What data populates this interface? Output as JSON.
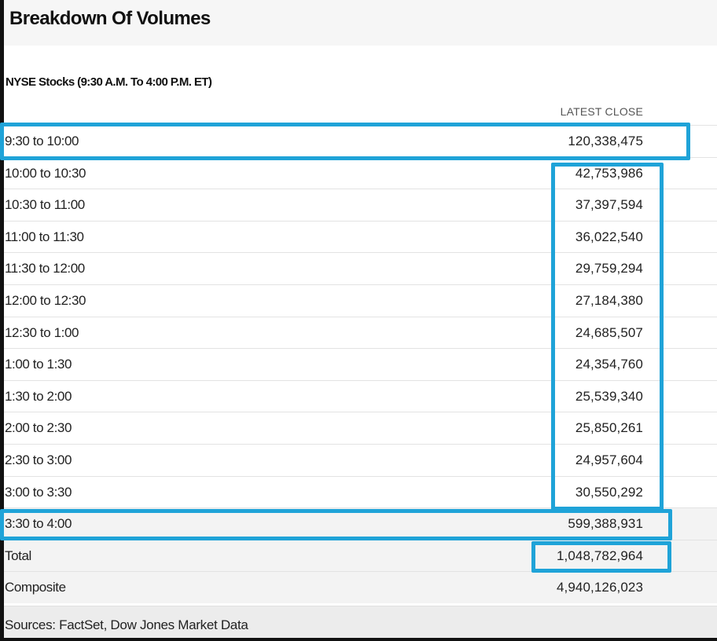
{
  "title": "Breakdown Of Volumes",
  "subtitle": "NYSE Stocks (9:30 A.M. To 4:00 P.M. ET)",
  "column_header": "LATEST CLOSE",
  "rows": [
    {
      "label": "9:30 to 10:00",
      "value": "120,338,475"
    },
    {
      "label": "10:00 to 10:30",
      "value": "42,753,986"
    },
    {
      "label": "10:30 to 11:00",
      "value": "37,397,594"
    },
    {
      "label": "11:00 to 11:30",
      "value": "36,022,540"
    },
    {
      "label": "11:30 to 12:00",
      "value": "29,759,294"
    },
    {
      "label": "12:00 to 12:30",
      "value": "27,184,380"
    },
    {
      "label": "12:30 to 1:00",
      "value": "24,685,507"
    },
    {
      "label": "1:00 to 1:30",
      "value": "24,354,760"
    },
    {
      "label": "1:30 to 2:00",
      "value": "25,539,340"
    },
    {
      "label": "2:00 to 2:30",
      "value": "25,850,261"
    },
    {
      "label": "2:30 to 3:00",
      "value": "24,957,604"
    },
    {
      "label": "3:00 to 3:30",
      "value": "30,550,292"
    },
    {
      "label": "3:30 to 4:00",
      "value": "599,388,931"
    },
    {
      "label": "Total",
      "value": "1,048,782,964"
    },
    {
      "label": "Composite",
      "value": "4,940,126,023"
    }
  ],
  "sources": "Sources: FactSet, Dow Jones Market Data",
  "highlight_color": "#1fa3d8"
}
